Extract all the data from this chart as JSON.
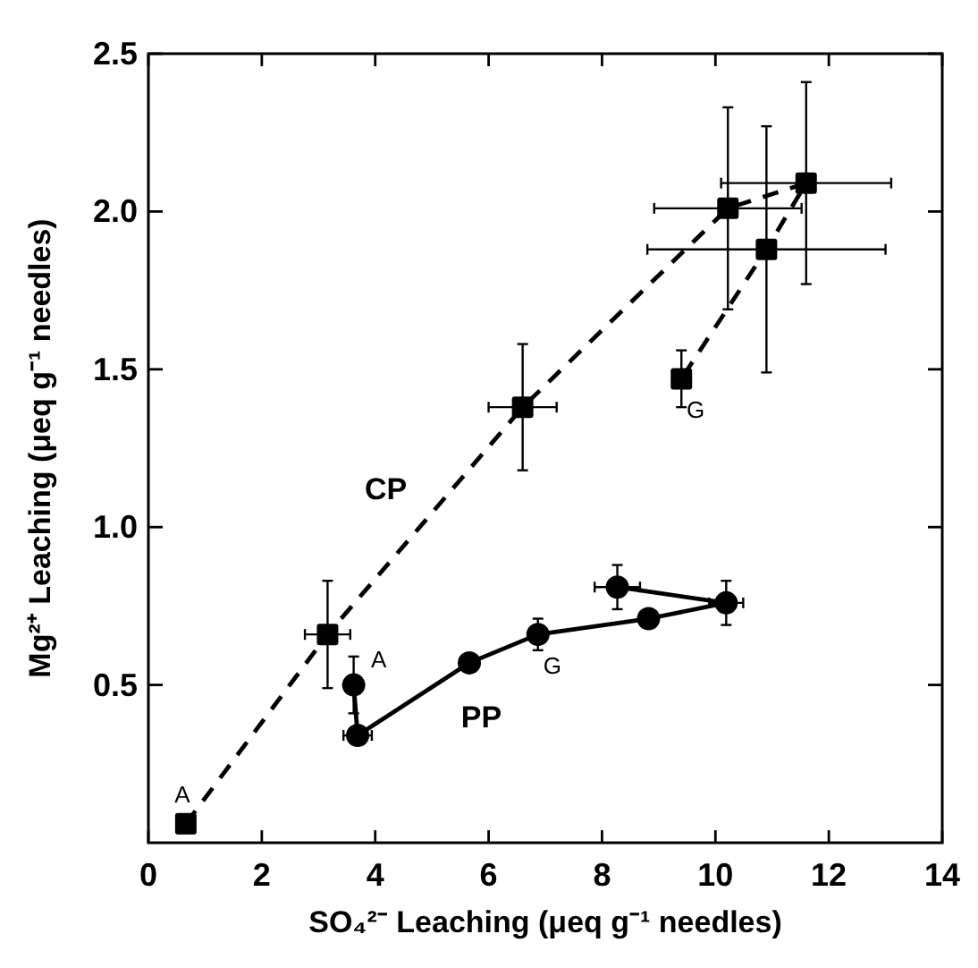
{
  "chart_data": {
    "type": "line",
    "xlabel": "SO₄²⁻ Leaching (μeq g⁻¹ needles)",
    "ylabel": "Mg²⁺ Leaching (μeq g⁻¹ needles)",
    "xlim": [
      0,
      14
    ],
    "xticks": [
      0,
      2,
      4,
      6,
      8,
      10,
      12,
      14
    ],
    "ylim": [
      0,
      2.5
    ],
    "yticks": [
      {
        "value": 0.5,
        "label": "0.5"
      },
      {
        "value": 1,
        "label": "1.0"
      },
      {
        "value": 1.5,
        "label": "1.5"
      },
      {
        "value": 2,
        "label": "2.0"
      },
      {
        "value": 2.5,
        "label": "2.5"
      }
    ],
    "grid": false,
    "series": [
      {
        "name": "CP",
        "color": "#000000",
        "marker": "square",
        "line_style": "dashed",
        "x": [
          0.66,
          3.16,
          6.6,
          10.22,
          11.6,
          10.9,
          9.4
        ],
        "values": [
          0.06,
          0.66,
          1.38,
          2.01,
          2.09,
          1.88,
          1.47
        ],
        "errors": [
          null,
          0.17,
          0.2,
          0.32,
          0.32,
          0.39,
          0.09
        ],
        "xerrors": [
          null,
          0.4,
          0.6,
          1.3,
          1.5,
          2.1,
          null
        ]
      },
      {
        "name": "PP",
        "color": "#000000",
        "marker": "circle",
        "line_style": "solid",
        "x": [
          3.62,
          3.69,
          5.66,
          6.87,
          8.82,
          10.19,
          8.27
        ],
        "values": [
          0.5,
          0.34,
          0.57,
          0.66,
          0.71,
          0.76,
          0.81
        ],
        "errors": [
          0.09,
          null,
          null,
          0.05,
          null,
          0.07,
          0.07
        ],
        "xerrors": [
          0.15,
          0.25,
          null,
          null,
          null,
          0.3,
          0.4
        ]
      }
    ],
    "annotations": [
      {
        "text": "A",
        "x": 0.66,
        "y": 0.06
      },
      {
        "text": "G",
        "x": 9.4,
        "y": 1.47
      },
      {
        "text": "A",
        "x": 3.62,
        "y": 0.5
      },
      {
        "text": "G",
        "x": 6.87,
        "y": 0.66
      }
    ]
  }
}
